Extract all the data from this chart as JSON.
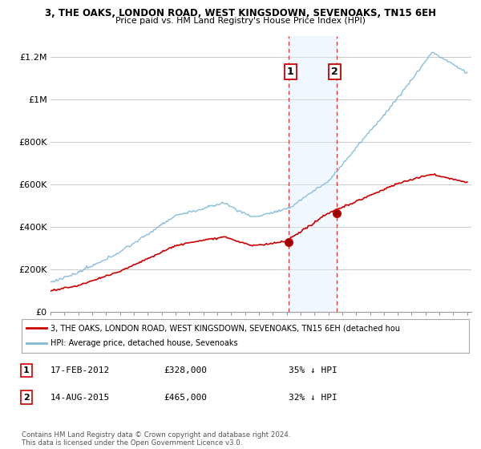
{
  "title1": "3, THE OAKS, LONDON ROAD, WEST KINGSDOWN, SEVENOAKS, TN15 6EH",
  "title2": "Price paid vs. HM Land Registry's House Price Index (HPI)",
  "ylim": [
    0,
    1300000
  ],
  "yticks": [
    0,
    200000,
    400000,
    600000,
    800000,
    1000000,
    1200000
  ],
  "ytick_labels": [
    "£0",
    "£200K",
    "£400K",
    "£600K",
    "£800K",
    "£1M",
    "£1.2M"
  ],
  "legend_line1": "3, THE OAKS, LONDON ROAD, WEST KINGSDOWN, SEVENOAKS, TN15 6EH (detached hou",
  "legend_line2": "HPI: Average price, detached house, Sevenoaks",
  "footnote": "Contains HM Land Registry data © Crown copyright and database right 2024.\nThis data is licensed under the Open Government Licence v3.0.",
  "transaction1_label": "1",
  "transaction1_date": "17-FEB-2012",
  "transaction1_price": "£328,000",
  "transaction1_pct": "35% ↓ HPI",
  "transaction1_time": 2012.12,
  "transaction1_value": 328000,
  "transaction2_label": "2",
  "transaction2_date": "14-AUG-2015",
  "transaction2_price": "£465,000",
  "transaction2_pct": "32% ↓ HPI",
  "transaction2_time": 2015.62,
  "transaction2_value": 465000,
  "hpi_color": "#7db8d8",
  "price_color": "#cc0000",
  "shading_color": "#ddeeff",
  "vline_color": "#dd3333",
  "background_color": "#ffffff",
  "grid_color": "#cccccc",
  "label_box_color": "#cc0000"
}
